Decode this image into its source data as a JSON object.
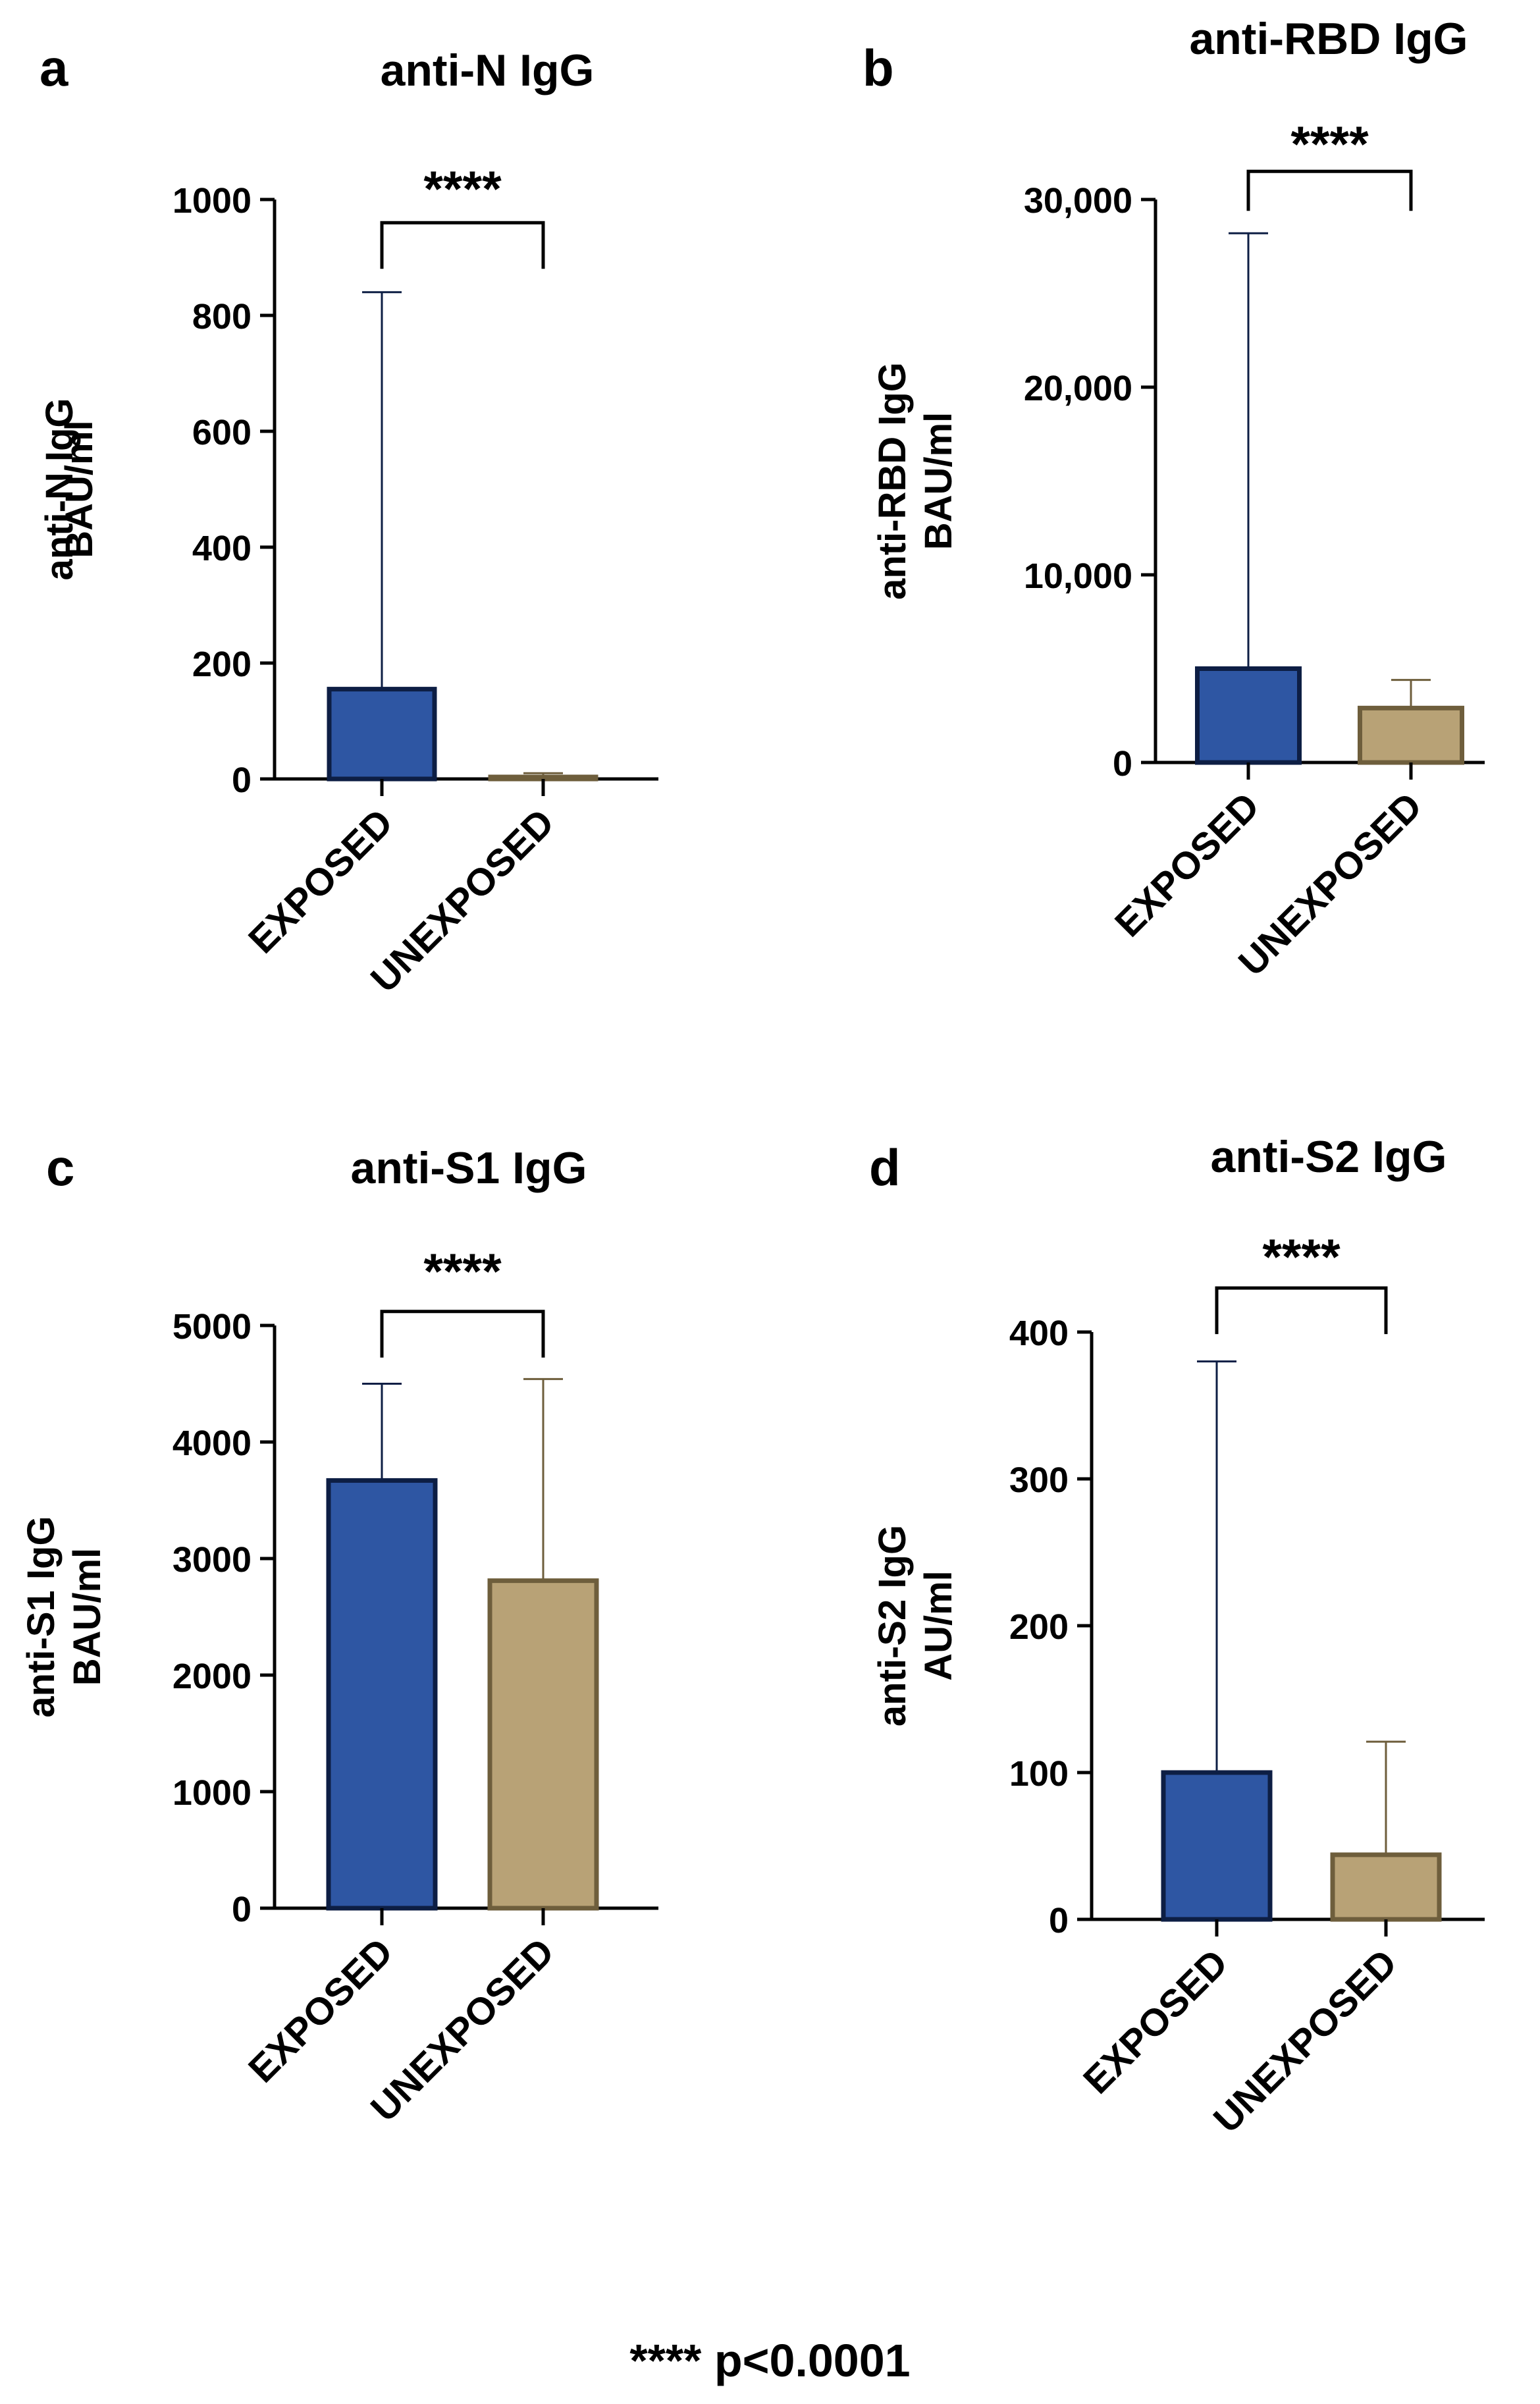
{
  "footnote": "**** p<0.0001",
  "colors": {
    "exposed_fill": "#2e56a3",
    "exposed_stroke": "#0d1e44",
    "unexposed_fill": "#b8a276",
    "unexposed_stroke": "#6e5e3c",
    "axis": "#000000"
  },
  "chart_data": [
    {
      "panel": "a",
      "type": "bar",
      "title": "anti-N IgG",
      "ylabel": [
        "anti-N IgG",
        "BAU/ml"
      ],
      "xlabel": "",
      "categories": [
        "EXPOSED",
        "UNEXPOSED"
      ],
      "values": [
        155,
        2
      ],
      "error_upper": [
        840,
        10
      ],
      "ylim": [
        0,
        1000
      ],
      "yticks": [
        0,
        200,
        400,
        600,
        800,
        1000
      ],
      "ytick_labels": [
        "0",
        "200",
        "400",
        "600",
        "800",
        "1000"
      ],
      "significance": "****",
      "significance_bracket_at": 960,
      "grid": false
    },
    {
      "panel": "b",
      "type": "bar",
      "title": "anti-RBD IgG",
      "ylabel": [
        "anti-RBD IgG",
        "BAU/ml"
      ],
      "xlabel": "",
      "categories": [
        "EXPOSED",
        "UNEXPOSED"
      ],
      "values": [
        5000,
        2900
      ],
      "error_upper": [
        28200,
        4400
      ],
      "ylim": [
        0,
        30000
      ],
      "yticks": [
        0,
        10000,
        20000,
        30000
      ],
      "ytick_labels": [
        "0",
        "10,000",
        "20,000",
        "30,000"
      ],
      "significance": "****",
      "significance_bracket_at": 31500,
      "grid": false
    },
    {
      "panel": "c",
      "type": "bar",
      "title": "anti-S1 IgG",
      "ylabel": [
        "anti-S1 IgG",
        "BAU/ml"
      ],
      "xlabel": "",
      "categories": [
        "EXPOSED",
        "UNEXPOSED"
      ],
      "values": [
        3670,
        2810
      ],
      "error_upper": [
        4500,
        4540
      ],
      "ylim": [
        0,
        5000
      ],
      "yticks": [
        0,
        1000,
        2000,
        3000,
        4000,
        5000
      ],
      "ytick_labels": [
        "0",
        "1000",
        "2000",
        "3000",
        "4000",
        "5000"
      ],
      "significance": "****",
      "significance_bracket_at": 5120,
      "grid": false
    },
    {
      "panel": "d",
      "type": "bar",
      "title": "anti-S2 IgG",
      "ylabel": [
        "anti-S2 IgG",
        "AU/ml"
      ],
      "xlabel": "",
      "categories": [
        "EXPOSED",
        "UNEXPOSED"
      ],
      "values": [
        100,
        44
      ],
      "error_upper": [
        380,
        121
      ],
      "ylim": [
        0,
        400
      ],
      "yticks": [
        0,
        100,
        200,
        300,
        400
      ],
      "ytick_labels": [
        "0",
        "100",
        "200",
        "300",
        "400"
      ],
      "significance": "****",
      "significance_bracket_at": 430,
      "grid": false
    }
  ]
}
